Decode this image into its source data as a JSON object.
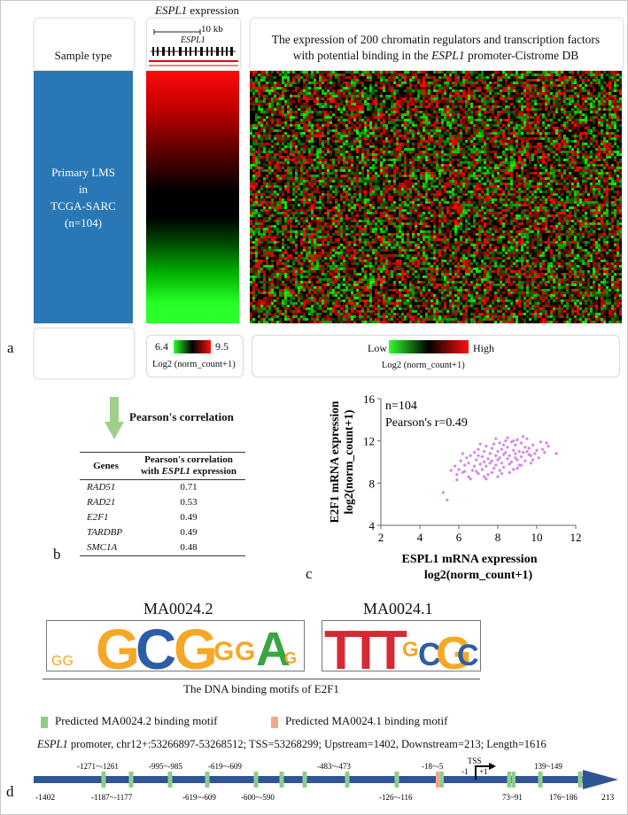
{
  "panel_letters": {
    "a": "a",
    "b": "b",
    "c": "c",
    "d": "d"
  },
  "panel_a": {
    "sample_type_label": "Sample type",
    "espl1_expression_gene": "ESPL1",
    "espl1_expression_suffix": " expression",
    "scale_label": "10 kb",
    "track_gene": "ESPL1",
    "heatmap_title_line1": "The expression of 200 chromatin regulators and transcription factors",
    "heatmap_title_line2_prefix": "with potential binding in the ",
    "heatmap_title_line2_gene": "ESPL1",
    "heatmap_title_line2_suffix": " promoter-Cistrome DB",
    "sample_lines": [
      "Primary LMS",
      "in",
      "TCGA-SARC",
      "(n=104)"
    ],
    "legend_left": {
      "min": "6.4",
      "max": "9.5",
      "label": "Log2 (norm_count+1)"
    },
    "legend_right": {
      "low": "Low",
      "high": "High",
      "label": "Log2 (norm_count+1)"
    },
    "colors": {
      "blue": "#2a77b6",
      "red": "#ff0000",
      "green": "#2dff2d",
      "black": "#000000"
    }
  },
  "panel_b": {
    "arrow_label": "Pearson's correlation",
    "table_headers": [
      "Genes",
      "Pearson's correlation",
      "with ",
      "ESPL1",
      " expression"
    ],
    "rows": [
      {
        "gene": "RAD51",
        "r": "0.71"
      },
      {
        "gene": "RAD21",
        "r": "0.53"
      },
      {
        "gene": "E2F1",
        "r": "0.49"
      },
      {
        "gene": "TARDBP",
        "r": "0.49"
      },
      {
        "gene": "SMC1A",
        "r": "0.48"
      }
    ]
  },
  "chart_data": {
    "type": "scatter",
    "title": "",
    "annotations": [
      "n=104",
      "Pearson's r=0.49"
    ],
    "xlabel_line1": "ESPL1 mRNA expression",
    "xlabel_line2": "log2(norm_count+1)",
    "ylabel_line1": "E2F1 mRNA expression",
    "ylabel_line2": "log2(norm_count+1)",
    "xlim": [
      2,
      12
    ],
    "ylim": [
      4,
      16
    ],
    "xticks": [
      "2",
      "4",
      "6",
      "8",
      "10",
      "12"
    ],
    "yticks": [
      "4",
      "8",
      "12",
      "16"
    ],
    "point_color": "#d48be4",
    "points": [
      [
        5.2,
        7.1
      ],
      [
        5.4,
        6.4
      ],
      [
        5.6,
        9.2
      ],
      [
        5.8,
        9.6
      ],
      [
        5.9,
        8.8
      ],
      [
        6.0,
        9.3
      ],
      [
        6.1,
        10.1
      ],
      [
        6.2,
        9.0
      ],
      [
        6.3,
        9.7
      ],
      [
        6.4,
        10.4
      ],
      [
        6.5,
        8.6
      ],
      [
        6.5,
        9.9
      ],
      [
        6.6,
        10.6
      ],
      [
        6.7,
        9.2
      ],
      [
        6.8,
        10.9
      ],
      [
        6.8,
        9.6
      ],
      [
        6.9,
        10.2
      ],
      [
        7.0,
        8.9
      ],
      [
        7.0,
        11.2
      ],
      [
        7.1,
        9.8
      ],
      [
        7.2,
        10.5
      ],
      [
        7.2,
        9.3
      ],
      [
        7.3,
        11.0
      ],
      [
        7.3,
        10.0
      ],
      [
        7.4,
        9.6
      ],
      [
        7.4,
        11.5
      ],
      [
        7.5,
        10.3
      ],
      [
        7.5,
        8.8
      ],
      [
        7.6,
        10.8
      ],
      [
        7.6,
        9.9
      ],
      [
        7.7,
        11.3
      ],
      [
        7.7,
        10.1
      ],
      [
        7.8,
        9.4
      ],
      [
        7.8,
        11.7
      ],
      [
        7.9,
        10.6
      ],
      [
        7.9,
        9.7
      ],
      [
        8.0,
        11.0
      ],
      [
        8.0,
        10.2
      ],
      [
        8.0,
        8.6
      ],
      [
        8.1,
        11.8
      ],
      [
        8.1,
        10.4
      ],
      [
        8.2,
        9.9
      ],
      [
        8.2,
        11.2
      ],
      [
        8.3,
        10.7
      ],
      [
        8.3,
        9.5
      ],
      [
        8.4,
        12.0
      ],
      [
        8.4,
        10.9
      ],
      [
        8.5,
        10.3
      ],
      [
        8.5,
        11.4
      ],
      [
        8.6,
        9.8
      ],
      [
        8.6,
        10.6
      ],
      [
        8.7,
        11.9
      ],
      [
        8.7,
        10.0
      ],
      [
        8.8,
        11.1
      ],
      [
        8.8,
        9.3
      ],
      [
        8.9,
        10.8
      ],
      [
        8.9,
        11.6
      ],
      [
        9.0,
        10.2
      ],
      [
        9.0,
        12.1
      ],
      [
        9.1,
        11.0
      ],
      [
        9.1,
        9.7
      ],
      [
        9.2,
        10.5
      ],
      [
        9.2,
        11.8
      ],
      [
        9.3,
        10.9
      ],
      [
        9.4,
        11.4
      ],
      [
        9.4,
        10.1
      ],
      [
        9.5,
        12.2
      ],
      [
        9.6,
        10.7
      ],
      [
        9.6,
        11.3
      ],
      [
        9.7,
        9.9
      ],
      [
        9.8,
        11.6
      ],
      [
        9.9,
        10.8
      ],
      [
        10.0,
        11.1
      ],
      [
        10.1,
        10.4
      ],
      [
        10.2,
        11.9
      ],
      [
        10.4,
        10.9
      ],
      [
        10.6,
        11.5
      ],
      [
        11.0,
        10.8
      ],
      [
        6.2,
        10.8
      ],
      [
        6.6,
        8.4
      ],
      [
        7.1,
        11.7
      ],
      [
        7.4,
        8.4
      ],
      [
        7.9,
        12.2
      ],
      [
        8.2,
        8.9
      ],
      [
        8.5,
        12.3
      ],
      [
        8.8,
        12.0
      ],
      [
        9.0,
        9.4
      ],
      [
        9.3,
        12.4
      ],
      [
        9.7,
        10.6
      ],
      [
        10.3,
        11.2
      ],
      [
        5.9,
        8.3
      ],
      [
        6.3,
        9.1
      ],
      [
        6.9,
        9.1
      ],
      [
        7.3,
        8.6
      ],
      [
        7.7,
        9.0
      ],
      [
        8.1,
        9.2
      ],
      [
        8.6,
        9.0
      ],
      [
        9.2,
        9.7
      ],
      [
        9.8,
        10.2
      ],
      [
        10.5,
        11.8
      ],
      [
        7.0,
        10.6
      ],
      [
        8.3,
        11.6
      ],
      [
        8.9,
        10.4
      ],
      [
        9.5,
        11.0
      ]
    ]
  },
  "panel_d": {
    "motif_names": [
      "MA0024.2",
      "MA0024.1"
    ],
    "motif_caption": "The DNA binding motifs of E2F1",
    "logo_letters_1": [
      {
        "ch": "G",
        "color": "#f4a826"
      },
      {
        "ch": "C",
        "color": "#2b5ea7"
      },
      {
        "ch": "G",
        "color": "#f4a826"
      },
      {
        "ch": "G",
        "color": "#f4a826"
      },
      {
        "ch": "G",
        "color": "#f4a826"
      },
      {
        "ch": "A",
        "color": "#3aa640"
      },
      {
        "ch": "G",
        "color": "#f4a826"
      }
    ],
    "logo_letters_2": [
      {
        "ch": "T",
        "color": "#d42a34"
      },
      {
        "ch": "T",
        "color": "#d42a34"
      },
      {
        "ch": "T",
        "color": "#d42a34"
      },
      {
        "ch": "G",
        "color": "#f4a826"
      },
      {
        "ch": "C",
        "color": "#2b5ea7"
      },
      {
        "ch": "G",
        "color": "#f4a826"
      },
      {
        "ch": "C",
        "color": "#2b5ea7"
      }
    ],
    "legend_ma0024_2": "Predicted MA0024.2 binding motif",
    "legend_ma0024_1": "Predicted MA0024.1 binding motif",
    "color_ma0024_2": "#8fcc8a",
    "color_ma0024_1": "#f2a98a",
    "promoter_gene": "ESPL1",
    "promoter_text": " promoter, chr12+:53266897-53268512; TSS=53268299; Upstream=1402, Downstream=213; Length=1616",
    "tss_label": "TSS",
    "tss_minus": "-1",
    "tss_plus": "+1",
    "axis_start": "-1402",
    "axis_end": "213",
    "top_labels": [
      "-1271~-1261",
      "-995~-985",
      "-619~-609",
      "-483~-473",
      "-18~-5",
      "139~149"
    ],
    "bottom_labels": [
      "-1187~-1177",
      "-619~-609",
      "-600~-590",
      "-126~-116",
      "73~91",
      "176~186"
    ]
  }
}
